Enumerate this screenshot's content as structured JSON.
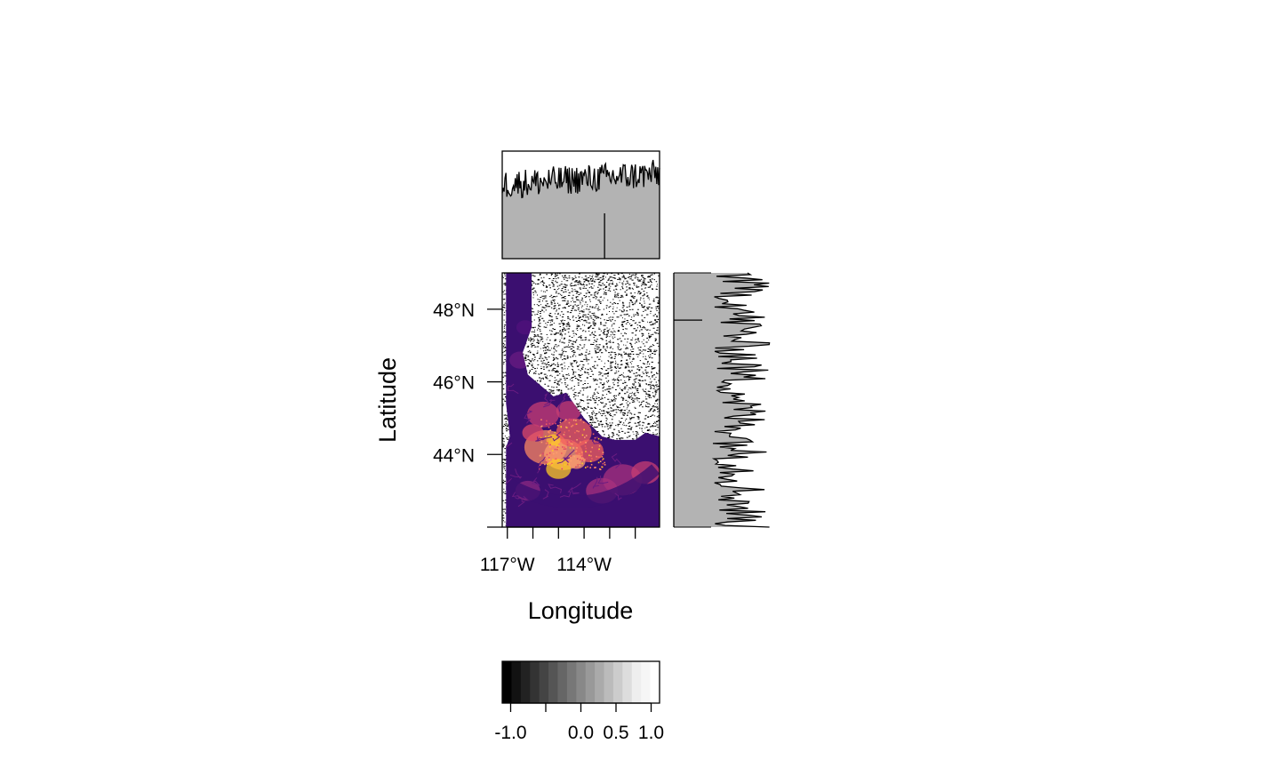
{
  "chart_data": {
    "type": "heatmap",
    "title": "",
    "xlabel": "Longitude",
    "ylabel": "Latitude",
    "x_ticks": {
      "values": [
        -117,
        -116,
        -115,
        -114,
        -113,
        -112
      ],
      "labels": [
        "117°W",
        "",
        "",
        "114°W",
        "",
        ""
      ]
    },
    "y_ticks": {
      "values": [
        42,
        44,
        46,
        48
      ],
      "labels": [
        "",
        "44°N",
        "46°N",
        "48°N"
      ]
    },
    "xlim": [
      -117.2,
      -111.05
    ],
    "ylim": [
      42.0,
      49.0
    ],
    "colormap": "magma",
    "background_colors": {
      "masked_noise": [
        "#000000",
        "#ffffff"
      ]
    },
    "features": {
      "state_boundary_lon": [
        -116.05,
        -116.05,
        -116.4,
        -116.2,
        -115.2,
        -114.7,
        -114.0,
        -113.3,
        -112.8,
        -112.0,
        -111.6,
        -111.05,
        -111.05
      ],
      "state_boundary_lat": [
        49.0,
        47.5,
        46.8,
        46.2,
        45.6,
        45.7,
        45.0,
        44.5,
        44.4,
        44.4,
        44.6,
        44.5,
        42.0
      ]
    },
    "top_marginal": {
      "type": "line",
      "fill": "#b3b3b3",
      "marker_lon": -113.2,
      "points": 170,
      "min": 0.45,
      "max": 1.0
    },
    "right_marginal": {
      "type": "line",
      "fill": "#b3b3b3",
      "marker_lat": 47.7,
      "points": 150,
      "min": 0.25,
      "max": 0.92
    },
    "colorbar": {
      "type": "bar",
      "range": [
        -1.12,
        1.12
      ],
      "n_bins": 17,
      "colors": [
        "#000000",
        "#121212",
        "#222222",
        "#333333",
        "#444444",
        "#555555",
        "#666666",
        "#777777",
        "#888888",
        "#999999",
        "#aaaaaa",
        "#bbbbbb",
        "#cccccc",
        "#dddddd",
        "#eeeeee",
        "#f6f6f6",
        "#ffffff"
      ],
      "tick_values": [
        -1.0,
        -0.5,
        0.0,
        0.5,
        1.0
      ],
      "tick_labels": [
        "-1.0",
        "",
        "0.0",
        "0.5",
        "1.0"
      ]
    }
  }
}
